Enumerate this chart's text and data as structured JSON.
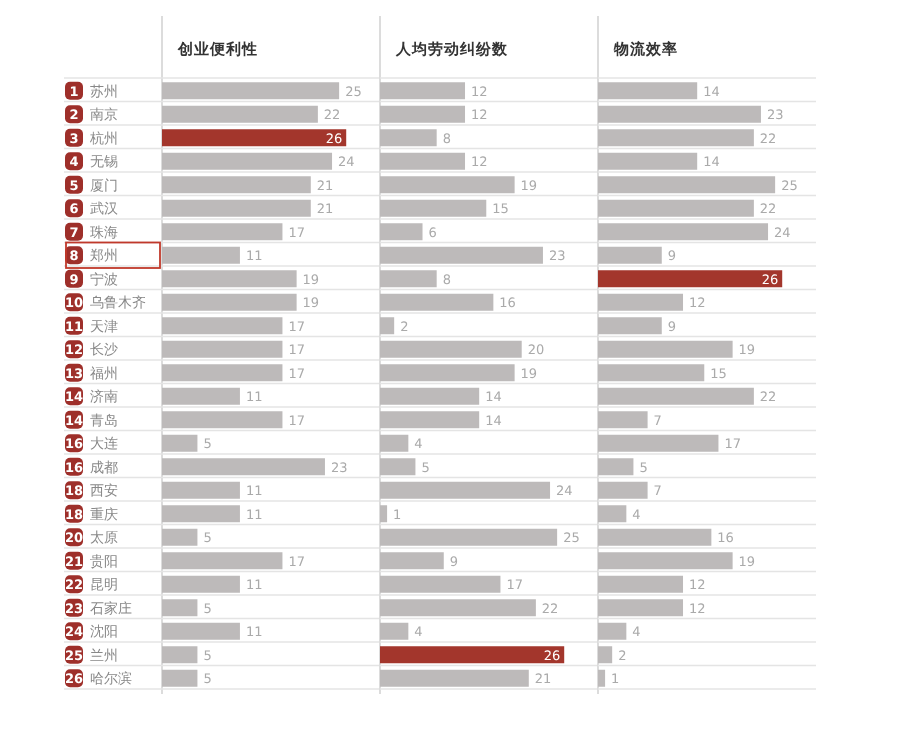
{
  "chart_data": [
    {
      "type": "bar",
      "orientation": "horizontal",
      "title": "创业便利性",
      "grid": "y",
      "data_labels": true,
      "categories": [
        "1 苏州",
        "2 南京",
        "3 杭州",
        "4 无锡",
        "5 厦门",
        "6 武汉",
        "7 珠海",
        "8 郑州",
        "9 宁波",
        "10 乌鲁木齐",
        "11 天津",
        "12 长沙",
        "13 福州",
        "14 济南",
        "14 青岛",
        "16 大连",
        "16 成都",
        "18 西安",
        "18 重庆",
        "20 太原",
        "21 贵阳",
        "22 昆明",
        "23 石家庄",
        "24 沈阳",
        "25 兰州",
        "26 哈尔滨"
      ],
      "values": [
        25,
        22,
        26,
        24,
        21,
        21,
        17,
        11,
        19,
        19,
        17,
        17,
        17,
        11,
        17,
        5,
        23,
        11,
        11,
        5,
        17,
        11,
        5,
        11,
        5,
        5
      ],
      "colors": [
        "#bdbaba",
        "#bdbaba",
        "#a3362c",
        "#bdbaba",
        "#bdbaba",
        "#bdbaba",
        "#bdbaba",
        "#bdbaba",
        "#bdbaba",
        "#bdbaba",
        "#bdbaba",
        "#bdbaba",
        "#bdbaba",
        "#bdbaba",
        "#bdbaba",
        "#bdbaba",
        "#bdbaba",
        "#bdbaba",
        "#bdbaba",
        "#bdbaba",
        "#bdbaba",
        "#bdbaba",
        "#bdbaba",
        "#bdbaba",
        "#bdbaba",
        "#bdbaba"
      ]
    },
    {
      "type": "bar",
      "orientation": "horizontal",
      "title": "人均劳动纠纷数",
      "grid": "y",
      "data_labels": true,
      "values": [
        12,
        12,
        8,
        12,
        19,
        15,
        6,
        23,
        8,
        16,
        2,
        20,
        19,
        14,
        14,
        4,
        5,
        24,
        1,
        25,
        9,
        17,
        22,
        4,
        26,
        21
      ],
      "colors": [
        "#bdbaba",
        "#bdbaba",
        "#bdbaba",
        "#bdbaba",
        "#bdbaba",
        "#bdbaba",
        "#bdbaba",
        "#bdbaba",
        "#bdbaba",
        "#bdbaba",
        "#bdbaba",
        "#bdbaba",
        "#bdbaba",
        "#bdbaba",
        "#bdbaba",
        "#bdbaba",
        "#bdbaba",
        "#bdbaba",
        "#bdbaba",
        "#bdbaba",
        "#bdbaba",
        "#bdbaba",
        "#bdbaba",
        "#bdbaba",
        "#a3362c",
        "#bdbaba"
      ]
    },
    {
      "type": "bar",
      "orientation": "horizontal",
      "title": "物流效率",
      "grid": "y",
      "data_labels": true,
      "values": [
        14,
        23,
        22,
        14,
        25,
        22,
        24,
        9,
        26,
        12,
        9,
        19,
        15,
        22,
        7,
        17,
        5,
        7,
        4,
        16,
        19,
        12,
        12,
        4,
        2,
        1
      ],
      "colors": [
        "#bdbaba",
        "#bdbaba",
        "#bdbaba",
        "#bdbaba",
        "#bdbaba",
        "#bdbaba",
        "#bdbaba",
        "#bdbaba",
        "#a3362c",
        "#bdbaba",
        "#bdbaba",
        "#bdbaba",
        "#bdbaba",
        "#bdbaba",
        "#bdbaba",
        "#bdbaba",
        "#bdbaba",
        "#bdbaba",
        "#bdbaba",
        "#bdbaba",
        "#bdbaba",
        "#bdbaba",
        "#bdbaba",
        "#bdbaba",
        "#bdbaba",
        "#bdbaba"
      ]
    }
  ]
}
